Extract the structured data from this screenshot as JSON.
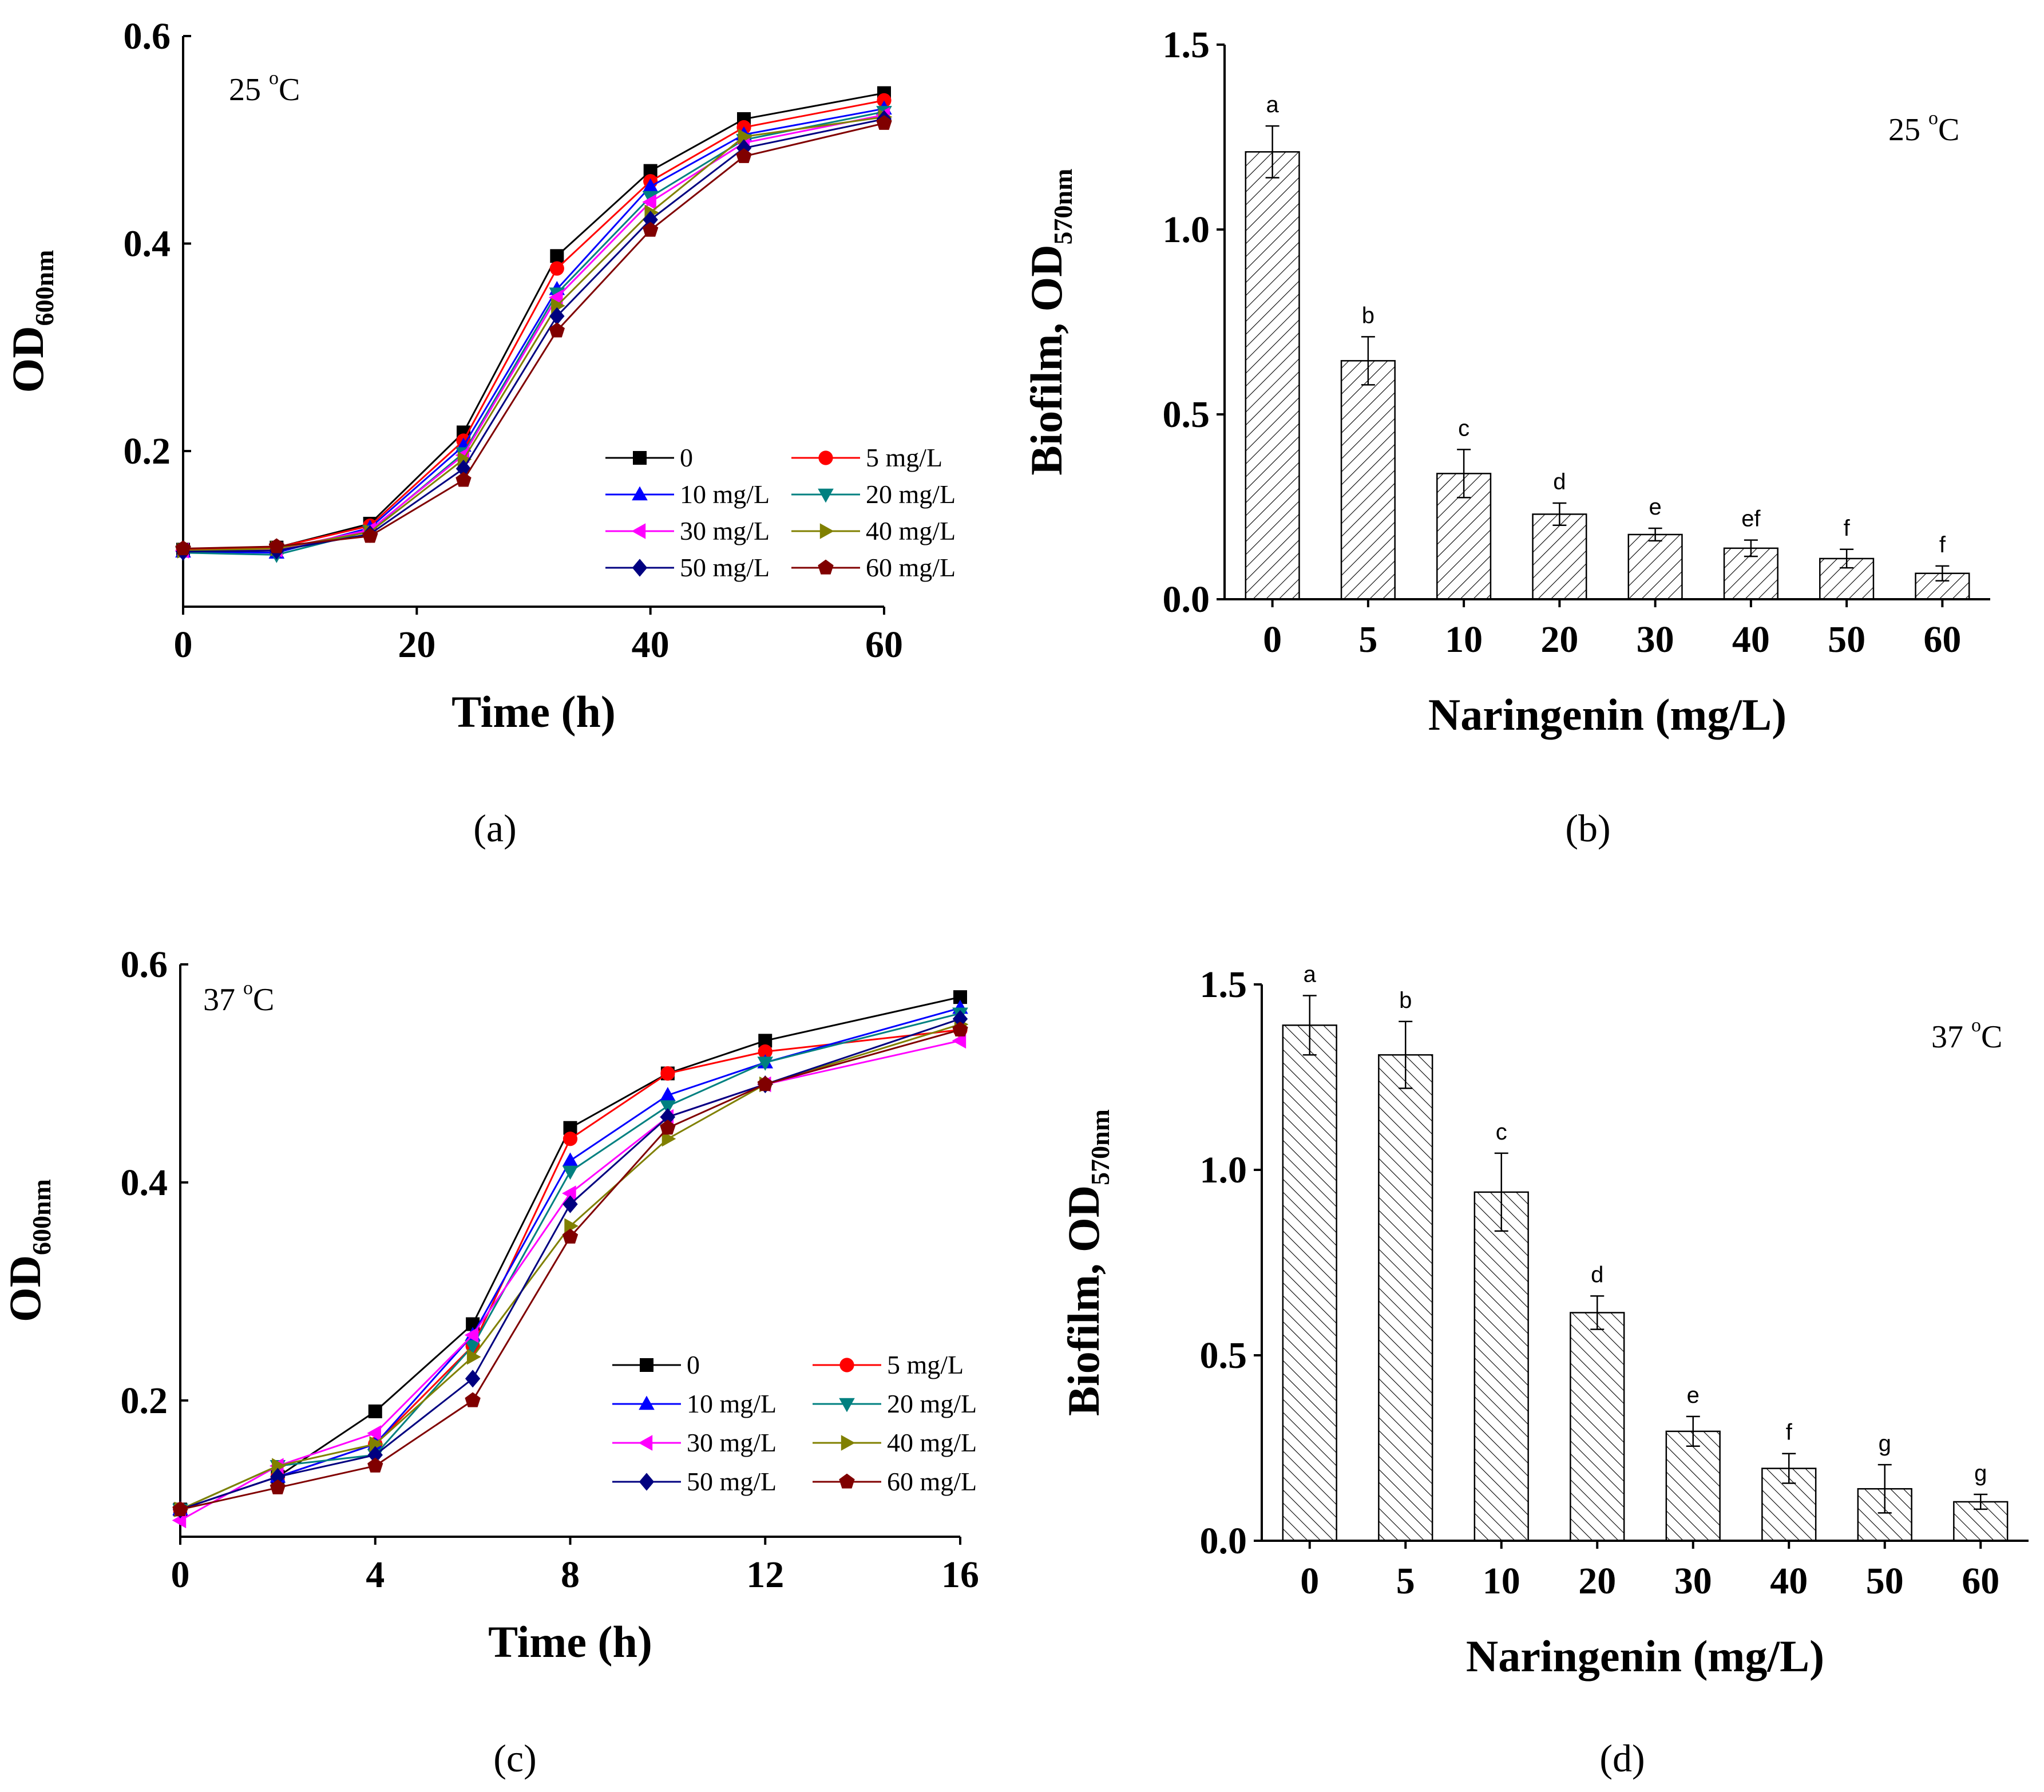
{
  "figure": {
    "panel_labels": [
      "(a)",
      "(b)",
      "(c)",
      "(d)"
    ]
  },
  "chart_data": [
    {
      "panel": "(a)",
      "type": "line",
      "annotation": "25 °C",
      "annotation_main": "25 ",
      "annotation_degree": "o",
      "annotation_unit": "C",
      "ylabel_main": "OD",
      "ylabel_sub": "600nm",
      "xlabel": "Time (h)",
      "x": [
        0,
        8,
        16,
        24,
        32,
        40,
        48,
        60
      ],
      "xlim": [
        0,
        60
      ],
      "ylim": [
        0.05,
        0.6
      ],
      "xticks": [
        0,
        20,
        40,
        60
      ],
      "yticks": [
        0.2,
        0.4,
        0.6
      ],
      "ytick_labels": [
        "0.2",
        "0.4",
        "0.6"
      ],
      "series": [
        {
          "name": "0",
          "color": "#000000",
          "marker": "square",
          "values": [
            0.105,
            0.107,
            0.13,
            0.218,
            0.388,
            0.47,
            0.52,
            0.545
          ]
        },
        {
          "name": "5 mg/L",
          "color": "#ff0000",
          "marker": "circle",
          "values": [
            0.105,
            0.107,
            0.128,
            0.21,
            0.376,
            0.46,
            0.512,
            0.538
          ]
        },
        {
          "name": "10 mg/L",
          "color": "#0000ff",
          "marker": "triangle-up",
          "values": [
            0.103,
            0.102,
            0.126,
            0.205,
            0.356,
            0.455,
            0.505,
            0.53
          ]
        },
        {
          "name": "20 mg/L",
          "color": "#008080",
          "marker": "triangle-down",
          "values": [
            0.102,
            0.1,
            0.123,
            0.198,
            0.352,
            0.445,
            0.5,
            0.527
          ]
        },
        {
          "name": "30 mg/L",
          "color": "#ff00ff",
          "marker": "triangle-left",
          "values": [
            0.104,
            0.105,
            0.124,
            0.196,
            0.348,
            0.44,
            0.497,
            0.524
          ]
        },
        {
          "name": "40 mg/L",
          "color": "#808000",
          "marker": "triangle-right",
          "values": [
            0.104,
            0.106,
            0.122,
            0.192,
            0.34,
            0.43,
            0.503,
            0.522
          ]
        },
        {
          "name": "50 mg/L",
          "color": "#000080",
          "marker": "diamond",
          "values": [
            0.103,
            0.104,
            0.12,
            0.183,
            0.33,
            0.423,
            0.492,
            0.52
          ]
        },
        {
          "name": "60 mg/L",
          "color": "#800000",
          "marker": "pentagon",
          "values": [
            0.106,
            0.108,
            0.118,
            0.172,
            0.316,
            0.413,
            0.484,
            0.516
          ]
        }
      ]
    },
    {
      "panel": "(b)",
      "type": "bar",
      "annotation": "25 °C",
      "annotation_main": "25 ",
      "annotation_degree": "o",
      "annotation_unit": "C",
      "ylabel_main": "Biofilm, OD",
      "ylabel_sub": "570nm",
      "xlabel": "Naringenin (mg/L)",
      "categories": [
        "0",
        "5",
        "10",
        "20",
        "30",
        "40",
        "50",
        "60"
      ],
      "values": [
        1.21,
        0.645,
        0.34,
        0.23,
        0.175,
        0.138,
        0.11,
        0.07
      ],
      "errors": [
        0.07,
        0.065,
        0.065,
        0.03,
        0.017,
        0.022,
        0.025,
        0.02
      ],
      "significance": [
        "a",
        "b",
        "c",
        "d",
        "e",
        "ef",
        "f",
        "f"
      ],
      "ylim": [
        0,
        1.5
      ],
      "yticks": [
        0,
        0.5,
        1.0,
        1.5
      ],
      "ytick_labels": [
        "0.0",
        "0.5",
        "1.0",
        "1.5"
      ],
      "pattern": "diagonal-down"
    },
    {
      "panel": "(c)",
      "type": "line",
      "annotation": "37 °C",
      "annotation_main": "37 ",
      "annotation_degree": "o",
      "annotation_unit": "C",
      "ylabel_main": "OD",
      "ylabel_sub": "600nm",
      "xlabel": "Time (h)",
      "x": [
        0,
        2,
        4,
        6,
        8,
        10,
        12,
        16
      ],
      "xlim": [
        0,
        16
      ],
      "ylim": [
        0.075,
        0.6
      ],
      "xticks": [
        0,
        4,
        8,
        12,
        16
      ],
      "yticks": [
        0.2,
        0.4,
        0.6
      ],
      "ytick_labels": [
        "0.2",
        "0.4",
        "0.6"
      ],
      "series": [
        {
          "name": "0",
          "color": "#000000",
          "marker": "square",
          "values": [
            0.1,
            0.13,
            0.19,
            0.27,
            0.45,
            0.5,
            0.53,
            0.57
          ]
        },
        {
          "name": "5 mg/L",
          "color": "#ff0000",
          "marker": "circle",
          "values": [
            0.1,
            0.13,
            0.16,
            0.25,
            0.44,
            0.5,
            0.52,
            0.54
          ]
        },
        {
          "name": "10 mg/L",
          "color": "#0000ff",
          "marker": "triangle-up",
          "values": [
            0.1,
            0.13,
            0.16,
            0.26,
            0.42,
            0.48,
            0.51,
            0.56
          ]
        },
        {
          "name": "20 mg/L",
          "color": "#008080",
          "marker": "triangle-down",
          "values": [
            0.1,
            0.14,
            0.15,
            0.25,
            0.41,
            0.47,
            0.51,
            0.555
          ]
        },
        {
          "name": "30 mg/L",
          "color": "#ff00ff",
          "marker": "triangle-left",
          "values": [
            0.09,
            0.14,
            0.17,
            0.26,
            0.39,
            0.46,
            0.49,
            0.53
          ]
        },
        {
          "name": "40 mg/L",
          "color": "#808000",
          "marker": "triangle-right",
          "values": [
            0.1,
            0.14,
            0.16,
            0.24,
            0.36,
            0.44,
            0.49,
            0.545
          ]
        },
        {
          "name": "50 mg/L",
          "color": "#000080",
          "marker": "diamond",
          "values": [
            0.1,
            0.13,
            0.15,
            0.22,
            0.38,
            0.46,
            0.49,
            0.55
          ]
        },
        {
          "name": "60 mg/L",
          "color": "#800000",
          "marker": "pentagon",
          "values": [
            0.1,
            0.12,
            0.14,
            0.2,
            0.35,
            0.45,
            0.49,
            0.54
          ]
        }
      ]
    },
    {
      "panel": "(d)",
      "type": "bar",
      "annotation": "37 °C",
      "annotation_main": "37 ",
      "annotation_degree": "o",
      "annotation_unit": "C",
      "ylabel_main": "Biofilm, OD",
      "ylabel_sub": "570nm",
      "xlabel": "Naringenin (mg/L)",
      "categories": [
        "0",
        "5",
        "10",
        "20",
        "30",
        "40",
        "50",
        "60"
      ],
      "values": [
        1.39,
        1.31,
        0.94,
        0.615,
        0.295,
        0.195,
        0.14,
        0.105
      ],
      "errors": [
        0.08,
        0.09,
        0.105,
        0.045,
        0.04,
        0.04,
        0.065,
        0.02
      ],
      "significance": [
        "a",
        "b",
        "c",
        "d",
        "e",
        "f",
        "g",
        "g"
      ],
      "ylim": [
        0,
        1.5
      ],
      "yticks": [
        0,
        0.5,
        1.0,
        1.5
      ],
      "ytick_labels": [
        "0.0",
        "0.5",
        "1.0",
        "1.5"
      ],
      "pattern": "diagonal-up"
    }
  ]
}
